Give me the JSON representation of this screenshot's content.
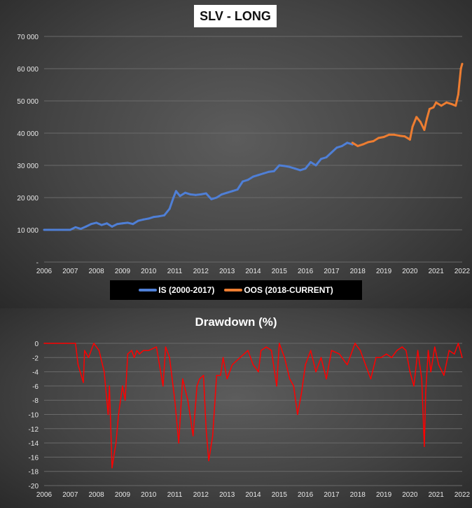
{
  "chart_data": [
    {
      "type": "line",
      "title": "SLV  - LONG",
      "xlabel": "",
      "ylabel": "",
      "xlim": [
        2006,
        2022
      ],
      "ylim": [
        0,
        70000
      ],
      "x_ticks": [
        "2006",
        "2007",
        "2008",
        "2009",
        "2010",
        "2011",
        "2012",
        "2013",
        "2014",
        "2015",
        "2016",
        "2017",
        "2018",
        "2019",
        "2020",
        "2021",
        "2022"
      ],
      "y_ticks": [
        "-",
        "10 000",
        "20 000",
        "30 000",
        "40 000",
        "50 000",
        "60 000",
        "70 000"
      ],
      "grid": true,
      "legend": "bottom",
      "series": [
        {
          "name": "IS (2000-2017)",
          "color": "#4f7fd6",
          "x": [
            2006.0,
            2007.0,
            2007.2,
            2007.4,
            2007.6,
            2007.8,
            2008.0,
            2008.2,
            2008.4,
            2008.6,
            2008.8,
            2009.0,
            2009.2,
            2009.4,
            2009.6,
            2009.8,
            2010.0,
            2010.2,
            2010.4,
            2010.6,
            2010.8,
            2010.95,
            2011.05,
            2011.2,
            2011.4,
            2011.6,
            2011.8,
            2012.0,
            2012.2,
            2012.4,
            2012.6,
            2012.8,
            2013.0,
            2013.2,
            2013.4,
            2013.6,
            2013.8,
            2014.0,
            2014.2,
            2014.4,
            2014.6,
            2014.8,
            2015.0,
            2015.2,
            2015.4,
            2015.6,
            2015.8,
            2016.0,
            2016.2,
            2016.4,
            2016.6,
            2016.8,
            2017.0,
            2017.2,
            2017.4,
            2017.6,
            2017.8
          ],
          "values": [
            10000,
            10000,
            10800,
            10300,
            11000,
            11800,
            12200,
            11500,
            12000,
            11000,
            11800,
            12000,
            12200,
            11800,
            12800,
            13200,
            13500,
            14000,
            14200,
            14500,
            16500,
            20000,
            22000,
            20500,
            21500,
            21000,
            20800,
            21000,
            21300,
            19500,
            20000,
            21000,
            21500,
            22000,
            22500,
            25000,
            25500,
            26500,
            27000,
            27500,
            28000,
            28200,
            30000,
            29800,
            29500,
            29000,
            28500,
            29000,
            31000,
            30000,
            32000,
            32500,
            34000,
            35500,
            36000,
            37000,
            36500
          ]
        },
        {
          "name": "OOS (2018-CURRENT)",
          "color": "#ed7d31",
          "x": [
            2017.8,
            2018.0,
            2018.2,
            2018.4,
            2018.6,
            2018.8,
            2019.0,
            2019.2,
            2019.4,
            2019.6,
            2019.8,
            2020.0,
            2020.1,
            2020.25,
            2020.4,
            2020.55,
            2020.65,
            2020.75,
            2020.9,
            2021.0,
            2021.2,
            2021.4,
            2021.6,
            2021.75,
            2021.85,
            2021.95,
            2022.0
          ],
          "values": [
            37000,
            36000,
            36500,
            37200,
            37500,
            38500,
            38800,
            39500,
            39500,
            39200,
            39000,
            38000,
            42000,
            45000,
            43500,
            41000,
            44500,
            47500,
            48000,
            49500,
            48500,
            49500,
            49000,
            48500,
            52000,
            60000,
            61500
          ]
        }
      ]
    },
    {
      "type": "line",
      "title": "Drawdown  (%)",
      "xlabel": "",
      "ylabel": "",
      "xlim": [
        2006,
        2022
      ],
      "ylim": [
        -20,
        0
      ],
      "x_ticks": [
        "2006",
        "2007",
        "2008",
        "2009",
        "2010",
        "2011",
        "2012",
        "2013",
        "2014",
        "2015",
        "2016",
        "2017",
        "2018",
        "2019",
        "2020",
        "2021",
        "2022"
      ],
      "y_ticks": [
        "0",
        "-2",
        "-4",
        "-6",
        "-8",
        "-10",
        "-12",
        "-14",
        "-16",
        "-18",
        "-20"
      ],
      "grid": true,
      "legend": "none",
      "series": [
        {
          "name": "",
          "color": "#ff0000",
          "x": [
            2006.0,
            2007.2,
            2007.3,
            2007.5,
            2007.55,
            2007.7,
            2007.9,
            2008.1,
            2008.3,
            2008.45,
            2008.5,
            2008.6,
            2008.75,
            2008.85,
            2009.0,
            2009.1,
            2009.2,
            2009.35,
            2009.45,
            2009.55,
            2009.65,
            2009.8,
            2010.0,
            2010.3,
            2010.55,
            2010.65,
            2010.8,
            2011.0,
            2011.15,
            2011.3,
            2011.5,
            2011.7,
            2011.85,
            2011.95,
            2012.1,
            2012.2,
            2012.3,
            2012.45,
            2012.6,
            2012.75,
            2012.85,
            2013.0,
            2013.2,
            2013.5,
            2013.8,
            2014.0,
            2014.2,
            2014.3,
            2014.5,
            2014.7,
            2014.9,
            2015.0,
            2015.2,
            2015.4,
            2015.55,
            2015.7,
            2015.85,
            2016.0,
            2016.2,
            2016.4,
            2016.6,
            2016.8,
            2017.0,
            2017.3,
            2017.6,
            2017.9,
            2018.1,
            2018.3,
            2018.5,
            2018.7,
            2018.9,
            2019.1,
            2019.3,
            2019.5,
            2019.7,
            2019.85,
            2020.0,
            2020.15,
            2020.3,
            2020.45,
            2020.55,
            2020.6,
            2020.7,
            2020.8,
            2020.95,
            2021.1,
            2021.3,
            2021.5,
            2021.7,
            2021.85,
            2022.0
          ],
          "values": [
            0,
            0,
            -3,
            -5.5,
            -1,
            -2,
            0,
            -1,
            -4,
            -10,
            -6,
            -17.5,
            -14,
            -10,
            -6,
            -8,
            -1.5,
            -1,
            -2,
            -1,
            -1.5,
            -1,
            -1,
            -0.5,
            -6,
            -0.5,
            -2,
            -8,
            -14,
            -5,
            -8,
            -13,
            -6,
            -5,
            -4.5,
            -12,
            -16.5,
            -13,
            -4.5,
            -4.5,
            -2,
            -5,
            -3,
            -2,
            -1,
            -3,
            -4,
            -1,
            -0.5,
            -1,
            -6,
            0,
            -2,
            -5,
            -6,
            -10,
            -7,
            -3,
            -1,
            -4,
            -2,
            -5,
            -1,
            -1.5,
            -3,
            0,
            -1,
            -3,
            -5,
            -2,
            -2,
            -1.5,
            -2,
            -1,
            -0.5,
            -1,
            -4,
            -6,
            -1,
            -5,
            -14.5,
            -7,
            -1,
            -4,
            -0.5,
            -3,
            -4.5,
            -1,
            -1.5,
            0,
            -2
          ]
        }
      ]
    }
  ],
  "legend": {
    "is_label": "IS (2000-2017)",
    "oos_label": "OOS (2018-CURRENT)"
  }
}
